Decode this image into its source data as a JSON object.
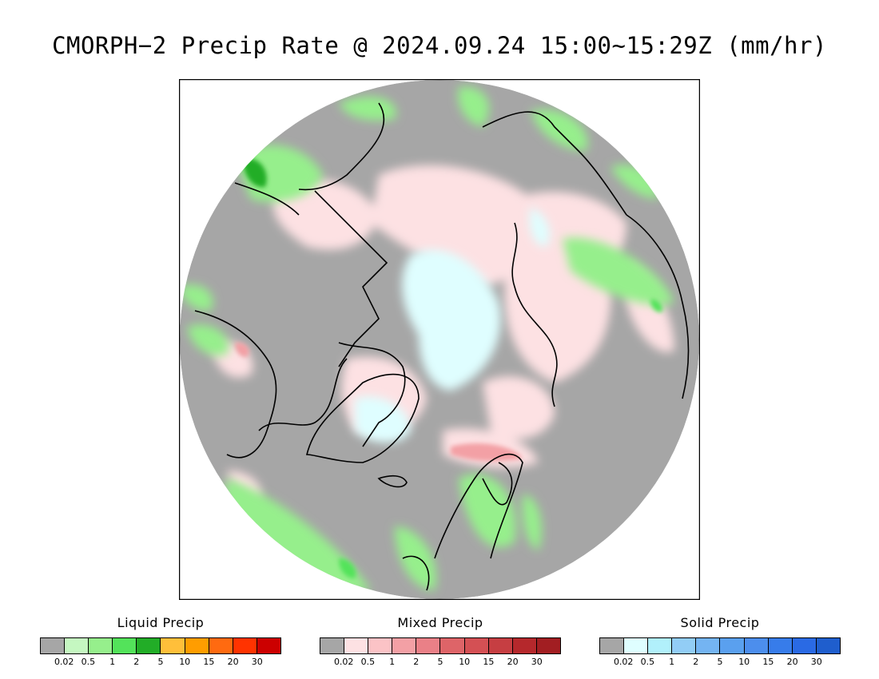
{
  "title": "CMORPH−2 Precip Rate @ 2024.09.24 15:00~15:29Z (mm/hr)",
  "legends": [
    {
      "label": "Liquid Precip",
      "colors": [
        "#a6a6a6",
        "#c5f7c1",
        "#96ef8c",
        "#53e35a",
        "#22ad27",
        "#ffbf3a",
        "#ff9d00",
        "#ff6a10",
        "#ff3300",
        "#cc0000"
      ],
      "ticks": [
        "0.02",
        "0.5",
        "1",
        "2",
        "5",
        "10",
        "15",
        "20",
        "30"
      ]
    },
    {
      "label": "Mixed Precip",
      "colors": [
        "#a6a6a6",
        "#fde1e3",
        "#fbc3c6",
        "#f3a0a5",
        "#ea8087",
        "#de6468",
        "#d45054",
        "#c63e42",
        "#b5282c",
        "#a21e22"
      ],
      "ticks": [
        "0.02",
        "0.5",
        "1",
        "2",
        "5",
        "10",
        "15",
        "20",
        "30"
      ]
    },
    {
      "label": "Solid Precip",
      "colors": [
        "#a6a6a6",
        "#dffeff",
        "#b1f0fb",
        "#92cdf6",
        "#74b4f2",
        "#5aa0ef",
        "#4c8eed",
        "#377cea",
        "#2a6ae4",
        "#1f5ecd"
      ],
      "ticks": [
        "0.02",
        "0.5",
        "1",
        "2",
        "5",
        "10",
        "15",
        "20",
        "30"
      ]
    }
  ],
  "map": {
    "no_precip_color": "#a6a6a6",
    "light_rain_color": "#96ef8c",
    "mixed_color": "#fde1e3",
    "snow_color": "#dffeff",
    "coastline_color": "#000000"
  }
}
